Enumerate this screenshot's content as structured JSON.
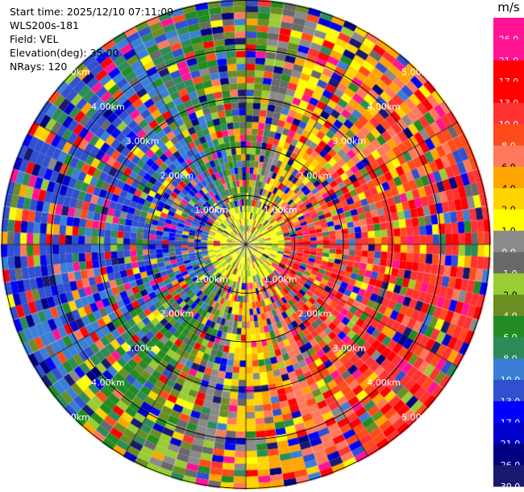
{
  "header": {
    "start_time": "Start time: 2025/12/10 07:11:09",
    "site": "WLS200s-181",
    "field": "Field: VEL",
    "elevation": "Elevation(deg): 35.00",
    "nrays": "NRays: 120"
  },
  "ppi": {
    "nrays": 120,
    "max_range_km": 5.0,
    "range_rings_km": [
      1,
      2,
      3,
      4,
      5
    ],
    "ring_labels": [
      "1.00km",
      "2.00km",
      "3.00km",
      "4.00km",
      "5.00km"
    ]
  },
  "colorbar": {
    "unit": "m/s",
    "levels": [
      "26.0",
      "21.0",
      "17.0",
      "13.0",
      "10.0",
      "8.0",
      "6.0",
      "4.0",
      "2.0",
      "1.0",
      "0.0",
      "-1.0",
      "-2.0",
      "-4.0",
      "-6.0",
      "-8.0",
      "-10.0",
      "-13.0",
      "-17.0",
      "-21.0",
      "-26.0",
      "-30.0"
    ],
    "colors": [
      "#ff1493",
      "#ff1493",
      "#ff0000",
      "#ff0000",
      "#ff3232",
      "#ff4a1a",
      "#ff7a5c",
      "#ffa500",
      "#ffd400",
      "#ffff00",
      "#8a8a8a",
      "#696969",
      "#9acd32",
      "#6b8e23",
      "#228b22",
      "#2e8b57",
      "#3a7fd5",
      "#3050cf",
      "#0000ff",
      "#0000cd",
      "#000080",
      "#191970"
    ]
  }
}
